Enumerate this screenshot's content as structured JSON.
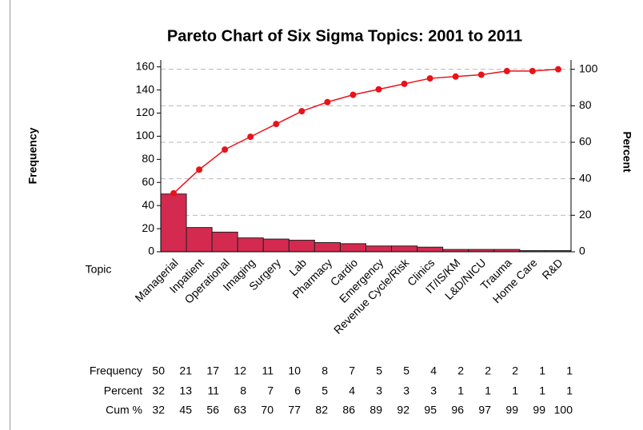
{
  "chart_data": {
    "type": "pareto",
    "title": "Pareto Chart of Six Sigma Topics: 2001 to 2011",
    "x_label": "Topic",
    "y_label": "Frequency",
    "y2_label": "Percent",
    "categories": [
      "Managerial",
      "Inpatient",
      "Operational",
      "Imaging",
      "Surgery",
      "Lab",
      "Pharmacy",
      "Cardio",
      "Emergency",
      "Revenue Cycle/Risk",
      "Clinics",
      "IT/IS/KM",
      "L&D/NICU",
      "Trauma",
      "Home Care",
      "R&D"
    ],
    "series": [
      {
        "type": "bar",
        "color": "#d42a50",
        "values": [
          50,
          21,
          17,
          12,
          11,
          10,
          8,
          7,
          5,
          5,
          4,
          2,
          2,
          2,
          1,
          1
        ]
      },
      {
        "type": "line",
        "axis": "y2",
        "color": "#e8131a",
        "values": [
          32,
          45,
          56,
          63,
          70,
          77,
          82,
          86,
          89,
          92,
          95,
          96,
          97,
          99,
          99,
          100
        ]
      }
    ],
    "percent": [
      32,
      13,
      11,
      8,
      7,
      6,
      5,
      4,
      3,
      3,
      3,
      1,
      1,
      1,
      1,
      1
    ],
    "table_row_labels": [
      "Frequency",
      "Percent",
      "Cum %"
    ],
    "ylim": [
      0,
      166
    ],
    "yticks": [
      0,
      20,
      40,
      60,
      80,
      100,
      120,
      140,
      160
    ],
    "y2lim": [
      0,
      105.1
    ],
    "y2ticks": [
      0,
      20,
      40,
      60,
      80,
      100
    ],
    "grid": true
  }
}
